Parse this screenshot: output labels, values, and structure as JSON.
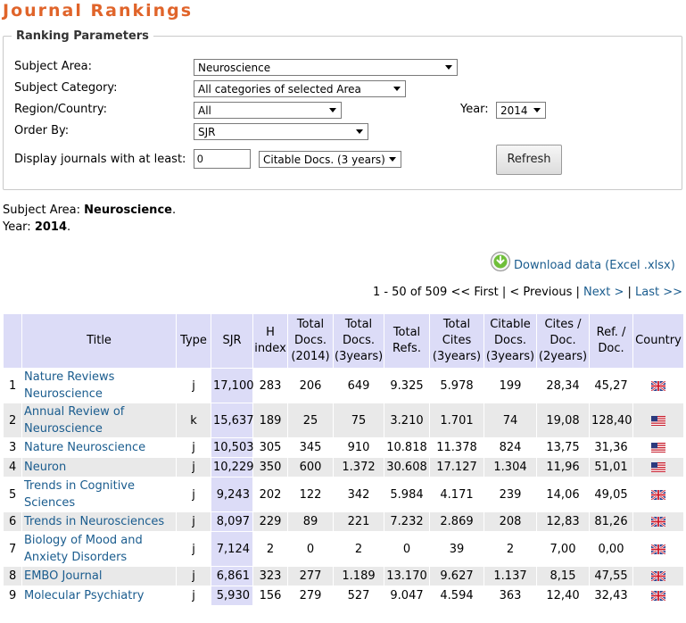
{
  "page": {
    "title": "Journal Rankings"
  },
  "params": {
    "legend": "Ranking Parameters",
    "subject_area_label": "Subject Area:",
    "subject_area_value": "Neuroscience",
    "subject_category_label": "Subject Category:",
    "subject_category_value": "All categories of selected Area",
    "region_label": "Region/Country:",
    "region_value": "All",
    "year_label": "Year:",
    "year_value": "2014",
    "order_label": "Order By:",
    "order_value": "SJR",
    "display_label": "Display journals with at least:",
    "min_value": "0",
    "doc_type_value": "Citable Docs. (3 years)",
    "refresh_label": "Refresh"
  },
  "summary": {
    "area_label": "Subject Area: ",
    "area_value": "Neuroscience",
    "area_suffix": ".",
    "year_label": "Year: ",
    "year_value": "2014",
    "year_suffix": "."
  },
  "download": {
    "label": "Download data (Excel .xlsx)"
  },
  "pager": {
    "range": "1 - 50 of 509",
    "first": "<< First",
    "sep1": " | ",
    "previous": "< Previous",
    "sep2": " | ",
    "next": "Next >",
    "sep3": " | ",
    "last": "Last >>"
  },
  "table": {
    "headers": {
      "title": "Title",
      "type": "Type",
      "sjr": "SJR",
      "h_index": "H index",
      "total_docs_year": "Total Docs. (2014)",
      "total_docs_3y": "Total Docs. (3years)",
      "total_refs": "Total Refs.",
      "total_cites_3y": "Total Cites (3years)",
      "citable_docs_3y": "Citable Docs. (3years)",
      "cites_per_doc_2y": "Cites / Doc. (2years)",
      "ref_per_doc": "Ref. / Doc.",
      "country": "Country"
    },
    "rows": [
      {
        "rank": "1",
        "title": "Nature Reviews Neuroscience",
        "type": "j",
        "sjr": "17,100",
        "h": "283",
        "docs": "206",
        "docs3": "649",
        "refs": "9.325",
        "cites3": "5.978",
        "citable3": "199",
        "cpd": "28,34",
        "rpd": "45,27",
        "country": "gb"
      },
      {
        "rank": "2",
        "title": "Annual Review of Neuroscience",
        "type": "k",
        "sjr": "15,637",
        "h": "189",
        "docs": "25",
        "docs3": "75",
        "refs": "3.210",
        "cites3": "1.701",
        "citable3": "74",
        "cpd": "19,08",
        "rpd": "128,40",
        "country": "us"
      },
      {
        "rank": "3",
        "title": "Nature Neuroscience",
        "type": "j",
        "sjr": "10,503",
        "h": "305",
        "docs": "345",
        "docs3": "910",
        "refs": "10.818",
        "cites3": "11.378",
        "citable3": "824",
        "cpd": "13,75",
        "rpd": "31,36",
        "country": "us"
      },
      {
        "rank": "4",
        "title": "Neuron",
        "type": "j",
        "sjr": "10,229",
        "h": "350",
        "docs": "600",
        "docs3": "1.372",
        "refs": "30.608",
        "cites3": "17.127",
        "citable3": "1.304",
        "cpd": "11,96",
        "rpd": "51,01",
        "country": "us"
      },
      {
        "rank": "5",
        "title": "Trends in Cognitive Sciences",
        "type": "j",
        "sjr": "9,243",
        "h": "202",
        "docs": "122",
        "docs3": "342",
        "refs": "5.984",
        "cites3": "4.171",
        "citable3": "239",
        "cpd": "14,06",
        "rpd": "49,05",
        "country": "gb"
      },
      {
        "rank": "6",
        "title": "Trends in Neurosciences",
        "type": "j",
        "sjr": "8,097",
        "h": "229",
        "docs": "89",
        "docs3": "221",
        "refs": "7.232",
        "cites3": "2.869",
        "citable3": "208",
        "cpd": "12,83",
        "rpd": "81,26",
        "country": "gb"
      },
      {
        "rank": "7",
        "title": "Biology of Mood and Anxiety Disorders",
        "type": "j",
        "sjr": "7,124",
        "h": "2",
        "docs": "0",
        "docs3": "2",
        "refs": "0",
        "cites3": "39",
        "citable3": "2",
        "cpd": "7,00",
        "rpd": "0,00",
        "country": "gb"
      },
      {
        "rank": "8",
        "title": "EMBO Journal",
        "type": "j",
        "sjr": "6,861",
        "h": "323",
        "docs": "277",
        "docs3": "1.189",
        "refs": "13.170",
        "cites3": "9.627",
        "citable3": "1.137",
        "cpd": "8,15",
        "rpd": "47,55",
        "country": "gb"
      },
      {
        "rank": "9",
        "title": "Molecular Psychiatry",
        "type": "j",
        "sjr": "5,930",
        "h": "156",
        "docs": "279",
        "docs3": "527",
        "refs": "9.047",
        "cites3": "4.594",
        "citable3": "363",
        "cpd": "12,40",
        "rpd": "32,43",
        "country": "gb"
      }
    ]
  },
  "colors": {
    "title": "#e0642a",
    "link": "#1a5c8e",
    "header_bg": "#dcdcf7",
    "row_alt_bg": "#e9e9e9"
  }
}
